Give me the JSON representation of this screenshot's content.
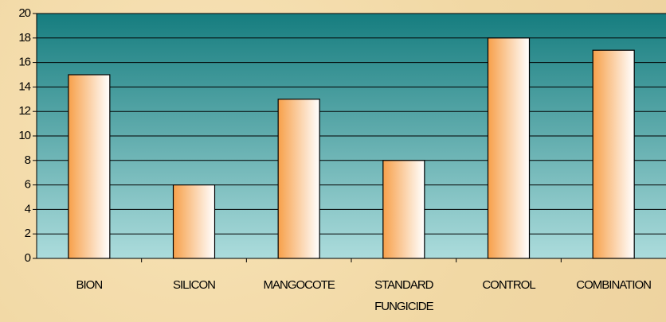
{
  "chart_data": {
    "type": "bar",
    "categories": [
      "BION",
      "SILICON",
      "MANGOCOTE",
      "STANDARD FUNGICIDE",
      "CONTROL",
      "COMBINATION"
    ],
    "values": [
      15,
      6,
      13,
      8,
      18,
      17
    ],
    "color": "#f7a04a",
    "ylim": [
      0,
      20
    ],
    "yticks": [
      0,
      2,
      4,
      6,
      8,
      10,
      12,
      14,
      16,
      18,
      20
    ],
    "grid": true
  }
}
